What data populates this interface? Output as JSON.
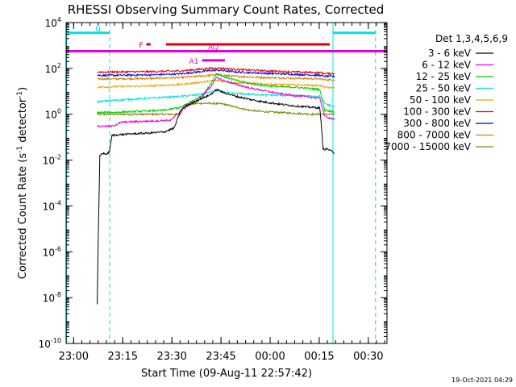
{
  "chart_data": {
    "type": "line",
    "title": "RHESSI Observing Summary Count Rates, Corrected",
    "xlabel": "Start Time (09-Aug-11 22:57:42)",
    "ylabel": "Corrected Count Rate (s⁻¹ detector⁻¹)",
    "ylabel_parts": {
      "main": "Corrected Count Rate (s",
      "sup1": "-1",
      "mid": " detector",
      "sup2": "-1",
      "end": ")"
    },
    "x_unit": "minutes after 22:57:42",
    "xlim": [
      0,
      98
    ],
    "yscale": "log",
    "ylim_exp": [
      -10,
      4
    ],
    "x_ticks": [
      {
        "label": "23:00",
        "x": 2.3
      },
      {
        "label": "23:15",
        "x": 17.3
      },
      {
        "label": "23:30",
        "x": 32.3
      },
      {
        "label": "23:45",
        "x": 47.3
      },
      {
        "label": "00:00",
        "x": 62.3
      },
      {
        "label": "00:15",
        "x": 77.3
      },
      {
        "label": "00:30",
        "x": 92.3
      }
    ],
    "y_ticks": [
      {
        "base": "10",
        "exp": "4",
        "e": 4
      },
      {
        "base": "10",
        "exp": "2",
        "e": 2
      },
      {
        "base": "10",
        "exp": "0",
        "e": 0
      },
      {
        "base": "10",
        "exp": "-2",
        "e": -2
      },
      {
        "base": "10",
        "exp": "-4",
        "e": -4
      },
      {
        "base": "10",
        "exp": "-6",
        "e": -6
      },
      {
        "base": "10",
        "exp": "-8",
        "e": -8
      },
      {
        "base": "10",
        "exp": "-10",
        "e": -10
      }
    ],
    "legend_title": "Det 1,3,4,5,6,9",
    "legend_position": "right",
    "series": [
      {
        "name": "3 - 6 keV",
        "color": "#000000",
        "x": [
          9.5,
          9.8,
          10.3,
          11.0,
          12.5,
          13.3,
          14.0,
          17,
          20,
          25,
          30,
          33,
          35,
          37,
          40,
          44,
          46,
          48,
          52,
          56,
          60,
          65,
          70,
          75,
          77.5,
          78.5,
          80,
          82
        ],
        "y": [
          5e-09,
          3e-06,
          0.015,
          0.02,
          0.018,
          0.025,
          0.12,
          0.13,
          0.14,
          0.15,
          0.17,
          0.25,
          1.5,
          2.5,
          4,
          7,
          12,
          9,
          6,
          4.5,
          3.5,
          2.8,
          2.3,
          2.0,
          1.9,
          0.03,
          0.03,
          0.02
        ]
      },
      {
        "name": "6 - 12 keV",
        "color": "#e000e0",
        "x": [
          9.5,
          14.0,
          17,
          25,
          32,
          36,
          40,
          44,
          46,
          48,
          52,
          56,
          60,
          65,
          70,
          75,
          77.5,
          79,
          82
        ],
        "y": [
          0.3,
          0.3,
          0.45,
          0.5,
          0.55,
          1.8,
          4,
          15,
          40,
          30,
          20,
          14,
          11,
          8,
          6.5,
          5.5,
          5,
          0.8,
          0.6
        ]
      },
      {
        "name": "12 - 25 keV",
        "color": "#00cc00",
        "x": [
          9.5,
          14.0,
          20,
          30,
          35,
          38,
          42,
          44,
          46,
          48,
          52,
          56,
          60,
          65,
          70,
          75,
          77.5,
          79,
          82
        ],
        "y": [
          1.2,
          1.2,
          1.3,
          1.5,
          2,
          3.5,
          7,
          20,
          60,
          45,
          30,
          22,
          18,
          16,
          15,
          13,
          12,
          1.5,
          1.3
        ]
      },
      {
        "name": "25 - 50 keV",
        "color": "#00e0e0",
        "x": [
          9.5,
          14.0,
          25,
          35,
          40,
          44,
          46,
          48,
          52,
          60,
          70,
          77.5,
          79,
          82
        ],
        "y": [
          3.5,
          4,
          5,
          6,
          7,
          9,
          11,
          9,
          8,
          7,
          6.5,
          6,
          3,
          2
        ]
      },
      {
        "name": "50 - 100 keV",
        "color": "#f0a000",
        "x": [
          9.5,
          14.0,
          25,
          35,
          40,
          44,
          46,
          48,
          52,
          60,
          70,
          77.5,
          79,
          82
        ],
        "y": [
          15,
          16,
          17,
          20,
          24,
          28,
          30,
          27,
          24,
          21,
          19,
          18,
          15,
          14
        ]
      },
      {
        "name": "100 - 300 keV",
        "color": "#e00000",
        "x": [
          9.5,
          14.0,
          25,
          35,
          40,
          44,
          46,
          48,
          52,
          60,
          70,
          77.5,
          79,
          82
        ],
        "y": [
          70,
          70,
          72,
          78,
          90,
          100,
          105,
          100,
          90,
          80,
          70,
          65,
          60,
          60
        ]
      },
      {
        "name": "300 - 800 keV",
        "color": "#0000e0",
        "x": [
          9.5,
          14.0,
          25,
          35,
          40,
          44,
          46,
          48,
          52,
          60,
          70,
          77.5,
          79,
          82
        ],
        "y": [
          50,
          50,
          52,
          58,
          70,
          80,
          85,
          80,
          70,
          62,
          55,
          50,
          45,
          45
        ]
      },
      {
        "name": "800 - 7000 keV",
        "color": "#d08000",
        "x": [
          9.5,
          14.0,
          25,
          35,
          40,
          44,
          46,
          48,
          52,
          60,
          70,
          77.5,
          79,
          82
        ],
        "y": [
          35,
          35,
          36,
          40,
          45,
          50,
          55,
          50,
          45,
          40,
          37,
          35,
          32,
          32
        ]
      },
      {
        "name": "7000 - 15000 keV",
        "color": "#808000",
        "x": [
          9.5,
          14.0,
          25,
          35,
          36,
          40,
          44,
          48,
          52,
          56,
          60,
          65,
          70,
          75,
          77.5,
          79,
          82
        ],
        "y": [
          1.0,
          1.0,
          1.0,
          1.0,
          2.5,
          3,
          3,
          2.8,
          2,
          1.5,
          1.3,
          1.2,
          1.1,
          1.0,
          1.0,
          1.0,
          1.0
        ]
      }
    ],
    "annotations": [
      {
        "label": "N",
        "type": "night-bar",
        "color": "#00e0e0",
        "segments": [
          [
            0,
            13.3
          ],
          [
            81.5,
            94.5
          ]
        ],
        "level_exp": 3.55
      },
      {
        "label": "F",
        "type": "flag-bar",
        "color": "#e00000",
        "segments": [
          [
            24.5,
            25.8
          ],
          [
            30.5,
            80.5
          ]
        ],
        "level_exp": 3.05
      },
      {
        "label": "",
        "type": "flag-bar",
        "color": "#e000e0",
        "segments": [
          [
            0,
            98
          ]
        ],
        "level_exp": 2.75
      },
      {
        "label": "AQ",
        "type": "flag-bar",
        "color": "#e000e0",
        "segments": [
          [
            42.5,
            48.5
          ],
          [
            49.5,
            98
          ]
        ],
        "level_exp": 2.75
      },
      {
        "label": "A1",
        "type": "flag-bar",
        "color": "#e000e0",
        "segments": [
          [
            41.5,
            48.5
          ]
        ],
        "level_exp": 2.35
      }
    ],
    "vertical_lines": [
      {
        "x": 0.2,
        "color": "#00e0e0",
        "style": "solid"
      },
      {
        "x": 13.3,
        "color": "#00e0e0",
        "style": "dashed"
      },
      {
        "x": 81.5,
        "color": "#00e0e0",
        "style": "solid"
      },
      {
        "x": 94.5,
        "color": "#00e0e0",
        "style": "dashed"
      }
    ],
    "grid": false,
    "footer_date": "19-Oct-2021 04:29"
  }
}
